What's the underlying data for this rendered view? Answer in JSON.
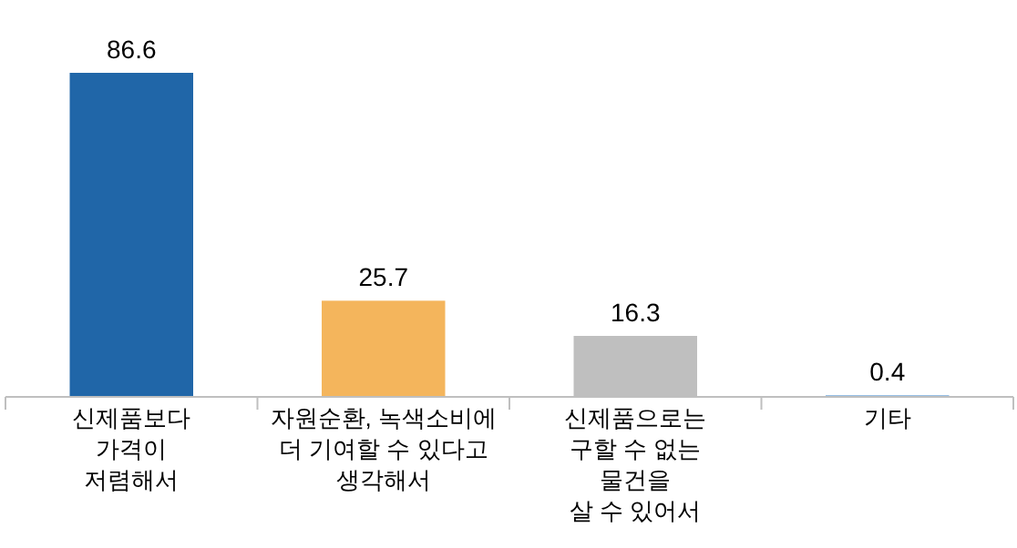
{
  "chart_data": {
    "type": "bar",
    "categories": [
      "신제품보다\n가격이\n저렴해서",
      "자원순환, 녹색소비에\n더 기여할 수 있다고\n생각해서",
      "신제품으로는\n구할 수 없는\n물건을\n살 수 있어서",
      "기타"
    ],
    "values": [
      86.6,
      25.7,
      16.3,
      0.4
    ],
    "colors": [
      "#2066a8",
      "#f4b55c",
      "#bfbfbf",
      "#5b9bd5"
    ],
    "data_labels": true
  }
}
